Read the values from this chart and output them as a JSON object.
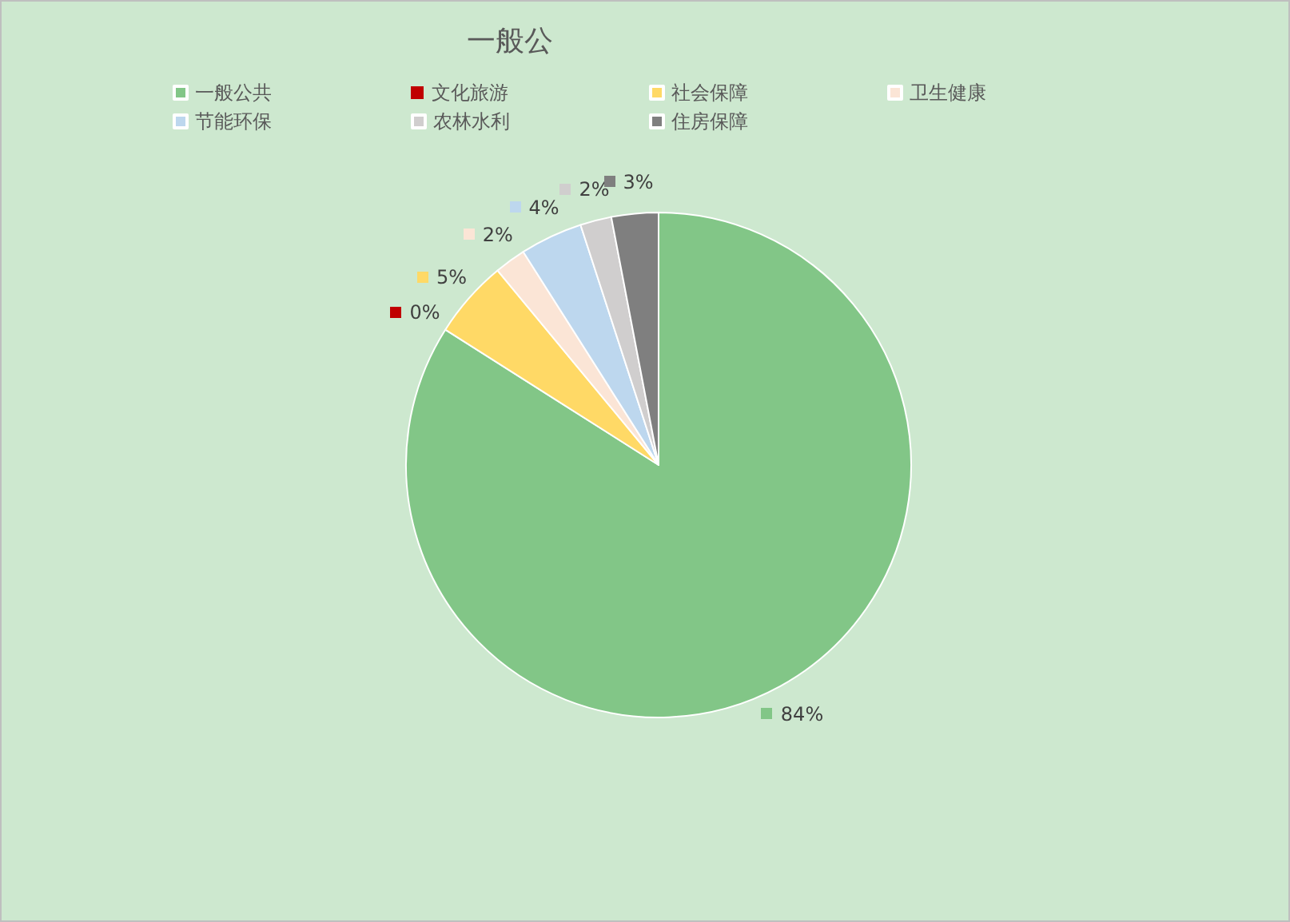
{
  "chart_data": {
    "type": "pie",
    "title": "一般公",
    "categories": [
      "一般公共",
      "文化旅游",
      "社会保障",
      "卫生健康",
      "节能环保",
      "农林水利",
      "住房保障"
    ],
    "values": [
      84,
      0,
      5,
      2,
      4,
      2,
      3
    ],
    "value_labels": [
      "84%",
      "0%",
      "5%",
      "2%",
      "4%",
      "2%",
      "3%"
    ],
    "colors": [
      "#82c687",
      "#c00000",
      "#ffd966",
      "#fbe5d6",
      "#bdd7ee",
      "#d0cece",
      "#7f7f7f"
    ],
    "legend": "top"
  }
}
